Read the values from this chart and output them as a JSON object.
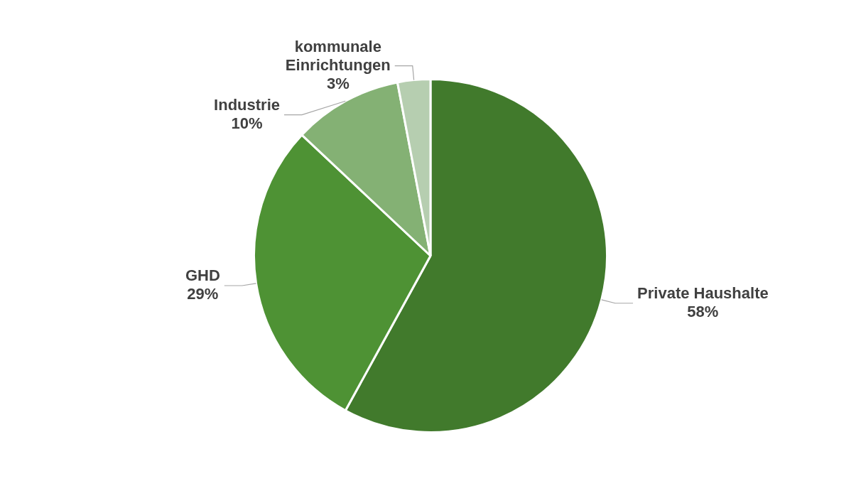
{
  "chart_data": {
    "type": "pie",
    "categories": [
      "Private Haushalte",
      "GHD",
      "Industrie",
      "kommunale Einrichtungen"
    ],
    "values": [
      58,
      29,
      10,
      3
    ],
    "value_labels": [
      "58%",
      "29%",
      "10%",
      "3%"
    ],
    "colors": [
      "#417a2c",
      "#4e9234",
      "#84b174",
      "#b6ceb0"
    ],
    "legend": false
  }
}
